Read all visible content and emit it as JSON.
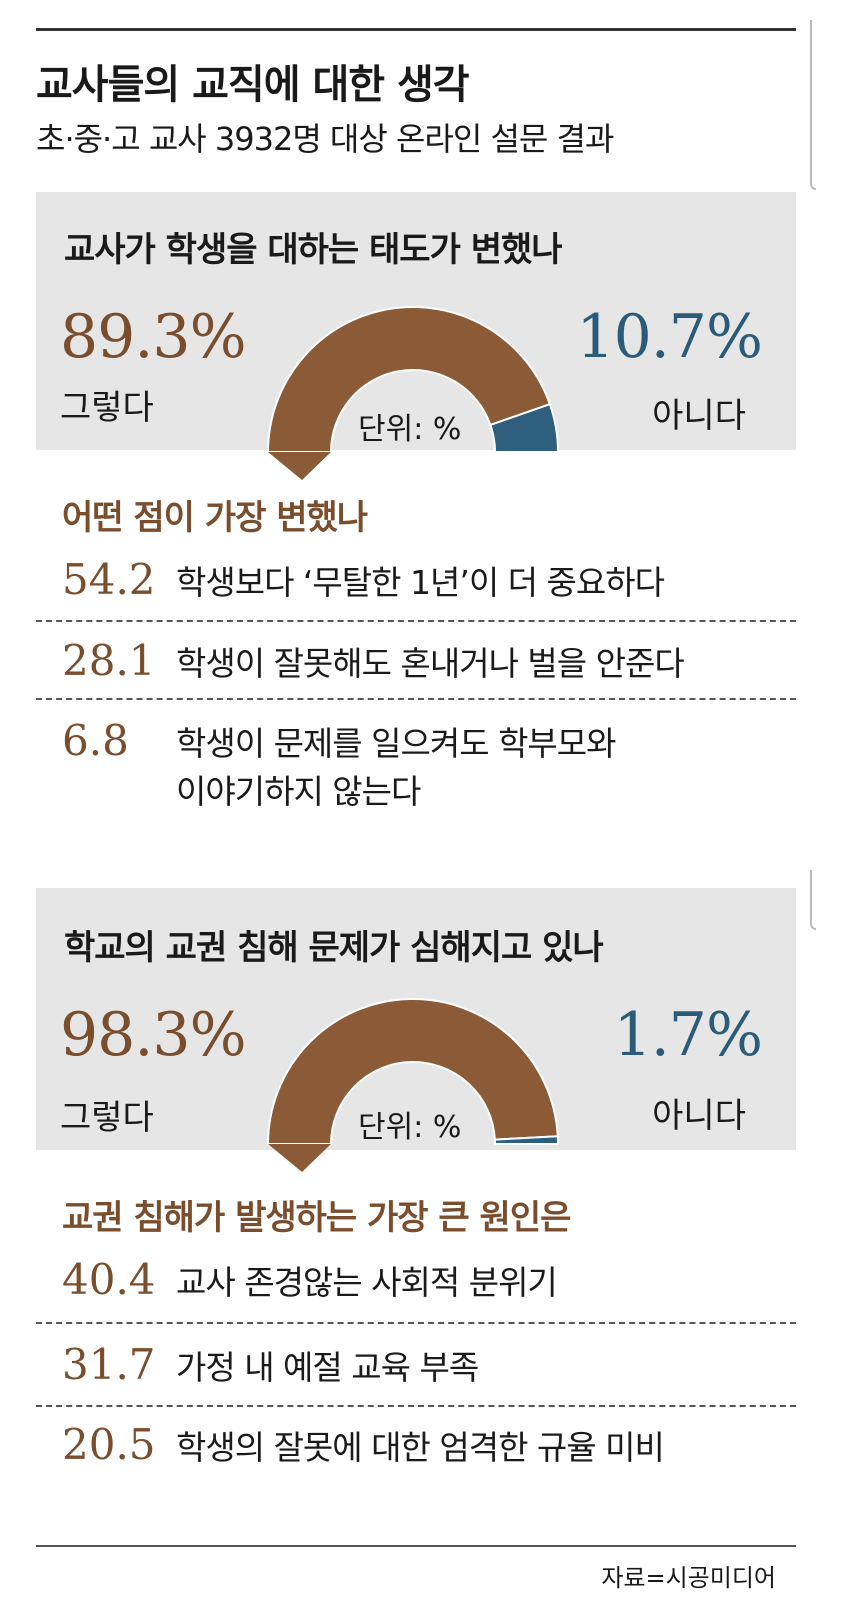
{
  "header": {
    "title": "교사들의 교직에 대한 생각",
    "subtitle": "초·중·고 교사 3932명 대상 온라인 설문 결과"
  },
  "colors": {
    "yes": "#8B5A37",
    "no": "#2E5F7E",
    "accent_text": "#7a4e2d",
    "panel_bg": "#e6e6e6"
  },
  "chart_data": [
    {
      "type": "pie",
      "title": "교사가 학생을 대하는 태도가 변했나",
      "style": "half-donut",
      "unit_label": "단위: %",
      "slices": [
        {
          "label": "그렇다",
          "value": 89.3,
          "display": "89.3%"
        },
        {
          "label": "아니다",
          "value": 10.7,
          "display": "10.7%"
        }
      ]
    },
    {
      "type": "table",
      "title": "어떤 점이 가장 변했나",
      "rows": [
        {
          "value": "54.2",
          "label": "학생보다 ‘무탈한 1년’이 더 중요하다"
        },
        {
          "value": "28.1",
          "label": "학생이 잘못해도 혼내거나 벌을 안준다"
        },
        {
          "value": "6.8",
          "label": "학생이 문제를 일으켜도 학부모와",
          "label2": "이야기하지 않는다"
        }
      ]
    },
    {
      "type": "pie",
      "title": "학교의 교권 침해 문제가 심해지고 있나",
      "style": "half-donut",
      "unit_label": "단위: %",
      "slices": [
        {
          "label": "그렇다",
          "value": 98.3,
          "display": "98.3%"
        },
        {
          "label": "아니다",
          "value": 1.7,
          "display": "1.7%"
        }
      ]
    },
    {
      "type": "table",
      "title": "교권 침해가 발생하는 가장 큰 원인은",
      "rows": [
        {
          "value": "40.4",
          "label": "교사 존경않는 사회적 분위기"
        },
        {
          "value": "31.7",
          "label": "가정 내 예절 교육 부족"
        },
        {
          "value": "20.5",
          "label": "학생의 잘못에 대한 엄격한 규율 미비"
        }
      ]
    }
  ],
  "footer": {
    "source": "자료=시공미디어"
  }
}
